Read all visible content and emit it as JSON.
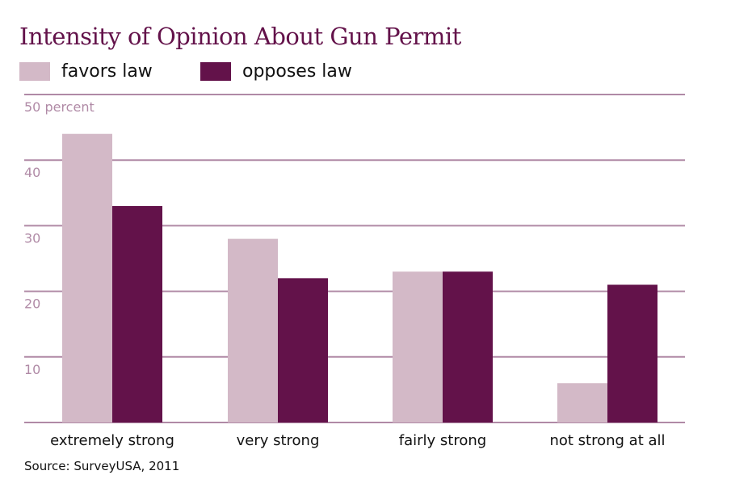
{
  "chart_data": {
    "type": "bar",
    "title": "Intensity of Opinion About Gun Permit",
    "xlabel": "",
    "ylabel": "percent",
    "ylim": [
      0,
      50
    ],
    "yticks": [
      10,
      20,
      30,
      40,
      50
    ],
    "ytick_labels": [
      "10",
      "20",
      "30",
      "40",
      "50 percent"
    ],
    "grid": true,
    "legend_position": "top-left",
    "categories": [
      "extremely strong",
      "very strong",
      "fairly strong",
      "not strong at all"
    ],
    "series": [
      {
        "name": "favors law",
        "color": "#d3b9c7",
        "values": [
          44,
          28,
          23,
          6
        ]
      },
      {
        "name": "opposes law",
        "color": "#63124a",
        "values": [
          33,
          22,
          23,
          21
        ]
      }
    ],
    "source": "Source: SurveyUSA, 2011"
  },
  "colors": {
    "title": "#63124a",
    "gridline": "#b08aa6",
    "tick_text": "#b08aa6"
  }
}
